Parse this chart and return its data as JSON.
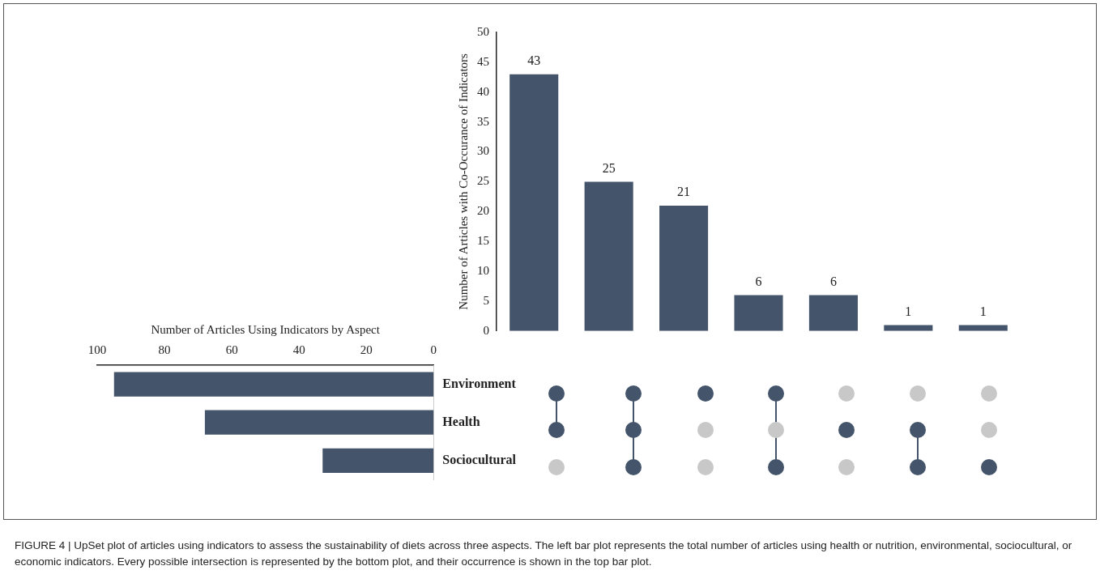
{
  "chart_data": [
    {
      "type": "bar",
      "categories": [
        null,
        null,
        null,
        null,
        null,
        null,
        null
      ],
      "values": [
        43,
        25,
        21,
        6,
        6,
        1,
        1
      ],
      "color": "#44546a",
      "ylabel": "Number of Articles with Co-Occurance of Indicators",
      "ylim": [
        0,
        50
      ],
      "yticks": [
        0,
        5,
        10,
        15,
        20,
        25,
        30,
        35,
        40,
        45,
        50
      ],
      "grid": false,
      "legend": false,
      "data_labels": true,
      "annotations": [
        "FIGURE 4 | UpSet plot of articles using indicators to assess the sustainability of diets across three aspects. The left bar plot represents the total number of articles using health or nutrition, environmental, sociocultural, or economic indicators. Every possible intersection is represented by the bottom plot, and their occurrence is shown in the top bar plot."
      ]
    },
    {
      "type": "bar",
      "orientation": "horizontal",
      "categories": [
        "Environment",
        "Health",
        "Sociocultural"
      ],
      "values": [
        95,
        68,
        33
      ],
      "color": "#44546a",
      "xlabel": "Number of Articles Using Indicators by Aspect",
      "xlim": [
        100,
        0
      ],
      "xticks": [
        100,
        80,
        60,
        40,
        20,
        0
      ],
      "grid": false,
      "legend": false
    }
  ]
}
